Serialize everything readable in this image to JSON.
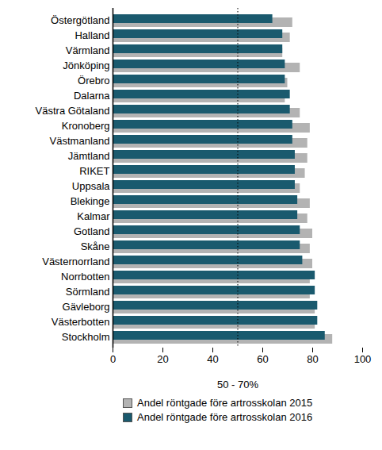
{
  "chart_data": {
    "type": "bar",
    "orientation": "horizontal",
    "x_label": "50 - 70%",
    "categories": [
      "Östergötland",
      "Halland",
      "Värmland",
      "Jönköping",
      "Örebro",
      "Dalarna",
      "Västra Götaland",
      "Kronoberg",
      "Västmanland",
      "Jämtland",
      "RIKET",
      "Uppsala",
      "Blekinge",
      "Kalmar",
      "Gotland",
      "Skåne",
      "Västernorrland",
      "Norrbotten",
      "Sörmland",
      "Gävleborg",
      "Västerbotten",
      "Stockholm"
    ],
    "series": [
      {
        "name": "Andel röntgade före artrosskolan 2015",
        "color": "#b3b3b3",
        "values": [
          72,
          71,
          68,
          75,
          70,
          69,
          75,
          79,
          78,
          78,
          77,
          75,
          79,
          78,
          80,
          79,
          80,
          79,
          79,
          81,
          81,
          88
        ]
      },
      {
        "name": "Andel röntgade före artrosskolan 2016",
        "color": "#1a5a6e",
        "values": [
          64,
          68,
          68,
          69,
          69,
          71,
          71,
          72,
          72,
          73,
          73,
          73,
          74,
          74,
          75,
          75,
          76,
          81,
          81,
          82,
          82,
          85
        ]
      }
    ],
    "reference_line": 50,
    "xlim": [
      0,
      100
    ],
    "xticks": [
      0,
      20,
      40,
      60,
      80,
      100
    ],
    "legend": "bottom",
    "grid": false
  }
}
